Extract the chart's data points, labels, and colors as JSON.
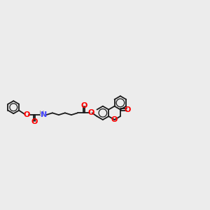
{
  "bg_color": "#ececec",
  "bond_color": "#1a1a1a",
  "atom_O": "#ff0000",
  "atom_N": "#4444ff",
  "atom_H": "#888888",
  "bond_lw": 1.3,
  "font_size": 7.5,
  "fig_w": 3.0,
  "fig_h": 3.0,
  "dpi": 100,
  "xlim": [
    0,
    14
  ],
  "ylim": [
    1.5,
    7.5
  ]
}
